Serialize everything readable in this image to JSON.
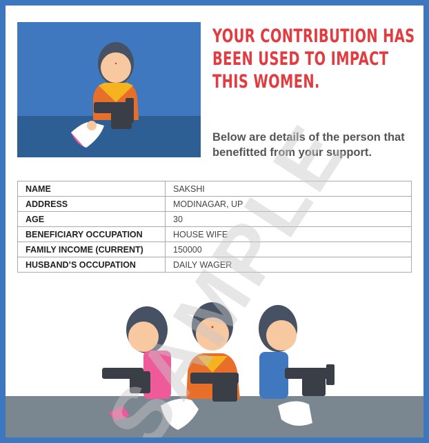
{
  "heading": "YOUR CONTRIBUTION HAS BEEN USED TO IMPACT THIS WOMEN.",
  "subtext": "Below are details of the person that benefitted from your support.",
  "details": [
    {
      "label": "NAME",
      "value": "SAKSHI"
    },
    {
      "label": "ADDRESS",
      "value": "MODINAGAR, UP"
    },
    {
      "label": "AGE",
      "value": "30"
    },
    {
      "label": "BENEFICIARY OCCUPATION",
      "value": "HOUSE WIFE"
    },
    {
      "label": "FAMILY INCOME (CURRENT)",
      "value": "150000"
    },
    {
      "label": "HUSBAND’S OCCUPATION",
      "value": "DAILY WAGER"
    }
  ],
  "watermark": "SAMPLE",
  "colors": {
    "frame": "#3d77be",
    "heading": "#e23b40",
    "hero_bg": "#3f78bf"
  }
}
